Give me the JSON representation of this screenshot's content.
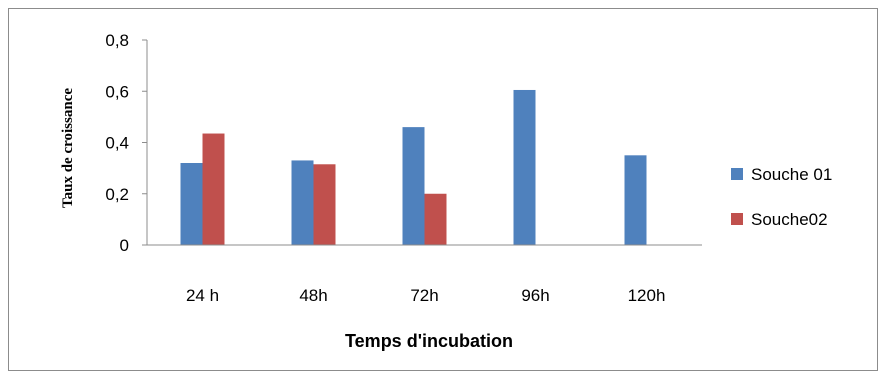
{
  "chart_data": {
    "type": "bar",
    "title": "",
    "xlabel": "Temps d'incubation",
    "ylabel": "Taux de croissance",
    "categories": [
      "24 h",
      "48h",
      "72h",
      "96h",
      "120h"
    ],
    "series": [
      {
        "name": "Souche 01",
        "color": "#4F81BD",
        "values": [
          0.32,
          0.33,
          0.46,
          0.605,
          0.35
        ]
      },
      {
        "name": "Souche02",
        "color": "#C0504D",
        "values": [
          0.435,
          0.315,
          0.2,
          0.0,
          0.0
        ]
      }
    ],
    "ylim": [
      0,
      0.8
    ],
    "yticks": [
      "0",
      "0,2",
      "0,4",
      "0,6",
      "0,8"
    ],
    "grid": false,
    "legend": "right"
  }
}
